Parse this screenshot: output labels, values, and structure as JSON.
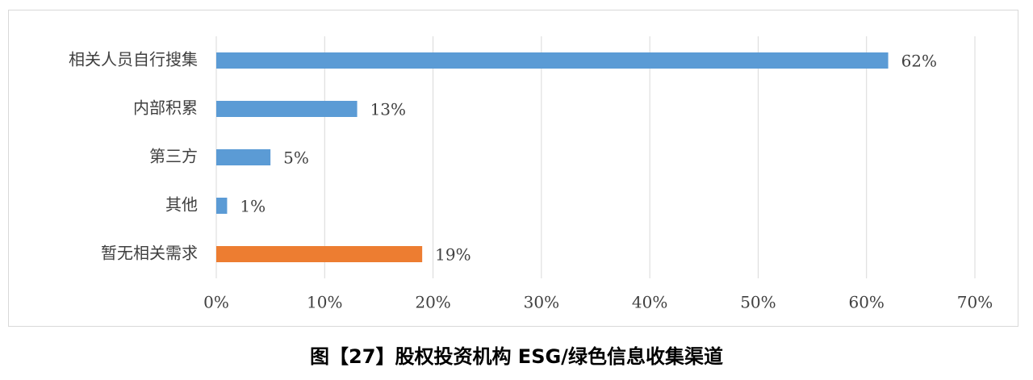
{
  "chart_data": {
    "type": "bar",
    "orientation": "horizontal",
    "title": "图【27】股权投资机构 ESG/绿色信息收集渠道",
    "categories": [
      "相关人员自行搜集",
      "内部积累",
      "第三方",
      "其他",
      "暂无相关需求"
    ],
    "values": [
      62,
      13,
      5,
      1,
      19
    ],
    "value_labels": [
      "62%",
      "13%",
      "5%",
      "1%",
      "19%"
    ],
    "colors": [
      "#5b9bd5",
      "#5b9bd5",
      "#5b9bd5",
      "#5b9bd5",
      "#ed7d31"
    ],
    "xlim": [
      0,
      70
    ],
    "xticks": [
      {
        "value": 0,
        "label": "0%"
      },
      {
        "value": 10,
        "label": "10%"
      },
      {
        "value": 20,
        "label": "20%"
      },
      {
        "value": 30,
        "label": "30%"
      },
      {
        "value": 40,
        "label": "40%"
      },
      {
        "value": 50,
        "label": "50%"
      },
      {
        "value": 60,
        "label": "60%"
      },
      {
        "value": 70,
        "label": "70%"
      }
    ],
    "grid": true
  }
}
